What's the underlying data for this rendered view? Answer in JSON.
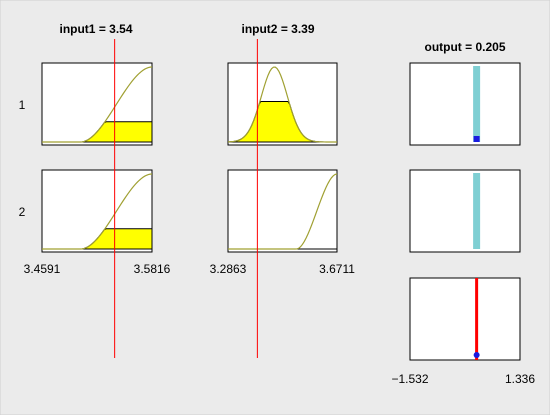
{
  "colors": {
    "panel_background": "#ebebeb",
    "plot_background": "#ffffff",
    "membership_curve": "#a0a032",
    "implied_fill": "#ffff00",
    "input_marker": "#ff0000",
    "output_bar": "#7fcfd3",
    "output_point": "#1a1ae0"
  },
  "inputs": [
    {
      "title": "input1 = 3.54",
      "value": 3.54,
      "range": [
        3.4591,
        3.5816
      ],
      "range_min_label": "3.4591",
      "range_max_label": "3.5816"
    },
    {
      "title": "input2 = 3.39",
      "value": 3.39,
      "range": [
        3.2863,
        3.6711
      ],
      "range_min_label": "3.2863",
      "range_max_label": "3.6711"
    }
  ],
  "output": {
    "title": "output = 0.205",
    "value": 0.205,
    "range": [
      -1.532,
      1.336
    ],
    "range_min_label": "−1.532",
    "range_max_label": "1.336"
  },
  "rules": [
    {
      "label": "1",
      "input1_membership": {
        "shape": "rising-s",
        "span": [
          3.4591,
          3.5816
        ],
        "firing": 0.27
      },
      "input2_membership": {
        "shape": "bell",
        "center": 3.45,
        "firing": 0.54
      },
      "output_value": 0.205,
      "output_level": 0.27
    },
    {
      "label": "2",
      "input1_membership": {
        "shape": "rising-s",
        "span": [
          3.4591,
          3.5816
        ],
        "firing": 0.27
      },
      "input2_membership": {
        "shape": "rising-s",
        "span": [
          3.45,
          3.6711
        ],
        "firing": 0.0
      },
      "output_value": 0.205,
      "output_level": 0.0
    }
  ]
}
